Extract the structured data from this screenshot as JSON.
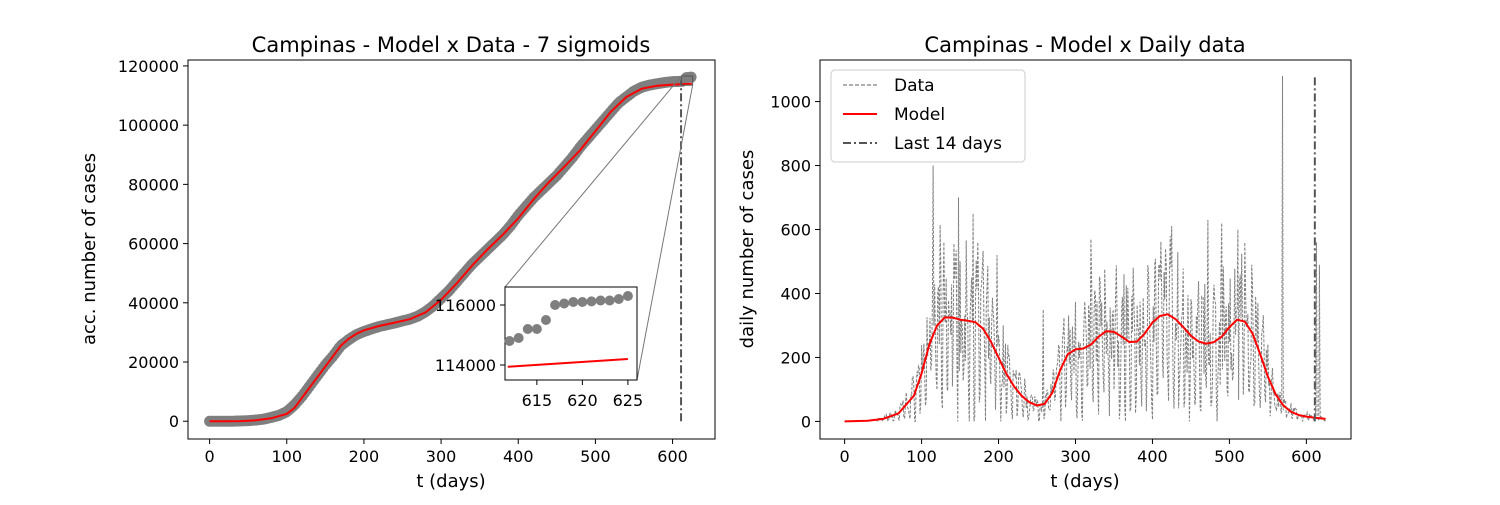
{
  "colors": {
    "data": "#7f7f7f",
    "model": "#ff0000",
    "last14": "#555555",
    "frame": "#000000"
  },
  "chart_data": [
    {
      "type": "scatter",
      "title": "Campinas - Model x Data - 7 sigmoids",
      "xlabel": "t (days)",
      "ylabel": "acc. number of cases",
      "xlim": [
        -28,
        655
      ],
      "ylim": [
        -6000,
        122000
      ],
      "xticks": [
        0,
        100,
        200,
        300,
        400,
        500,
        600
      ],
      "yticks": [
        0,
        20000,
        40000,
        60000,
        80000,
        100000,
        120000
      ],
      "last_14_days_x": 611,
      "data_points": [
        [
          0,
          0
        ],
        [
          10,
          0
        ],
        [
          20,
          0
        ],
        [
          30,
          0
        ],
        [
          40,
          100
        ],
        [
          50,
          200
        ],
        [
          60,
          400
        ],
        [
          70,
          700
        ],
        [
          80,
          1300
        ],
        [
          90,
          2000
        ],
        [
          100,
          3200
        ],
        [
          110,
          5500
        ],
        [
          120,
          8500
        ],
        [
          130,
          12000
        ],
        [
          140,
          15500
        ],
        [
          150,
          19000
        ],
        [
          160,
          22000
        ],
        [
          170,
          25500
        ],
        [
          180,
          27500
        ],
        [
          190,
          29200
        ],
        [
          200,
          30300
        ],
        [
          210,
          31200
        ],
        [
          220,
          32000
        ],
        [
          230,
          32600
        ],
        [
          240,
          33200
        ],
        [
          250,
          33900
        ],
        [
          260,
          34500
        ],
        [
          270,
          35500
        ],
        [
          280,
          37000
        ],
        [
          290,
          39000
        ],
        [
          300,
          41500
        ],
        [
          310,
          44000
        ],
        [
          320,
          47000
        ],
        [
          330,
          50000
        ],
        [
          340,
          53000
        ],
        [
          350,
          55500
        ],
        [
          360,
          58000
        ],
        [
          370,
          60500
        ],
        [
          380,
          63000
        ],
        [
          390,
          66000
        ],
        [
          400,
          69500
        ],
        [
          410,
          72500
        ],
        [
          420,
          75500
        ],
        [
          430,
          78000
        ],
        [
          440,
          80500
        ],
        [
          450,
          83000
        ],
        [
          460,
          86000
        ],
        [
          470,
          89000
        ],
        [
          480,
          92500
        ],
        [
          490,
          95500
        ],
        [
          500,
          98500
        ],
        [
          510,
          101500
        ],
        [
          520,
          104500
        ],
        [
          530,
          107500
        ],
        [
          540,
          109500
        ],
        [
          550,
          111500
        ],
        [
          560,
          112800
        ],
        [
          570,
          113500
        ],
        [
          580,
          114000
        ],
        [
          590,
          114400
        ],
        [
          600,
          114700
        ],
        [
          612,
          114800
        ],
        [
          613,
          114900
        ],
        [
          614,
          115200
        ],
        [
          615,
          115200
        ],
        [
          616,
          115500
        ],
        [
          617,
          116000
        ],
        [
          618,
          116050
        ],
        [
          619,
          116100
        ],
        [
          620,
          116100
        ],
        [
          621,
          116120
        ],
        [
          622,
          116150
        ],
        [
          623,
          116150
        ],
        [
          624,
          116200
        ],
        [
          625,
          116300
        ]
      ],
      "model": [
        [
          0,
          0
        ],
        [
          20,
          0
        ],
        [
          40,
          50
        ],
        [
          60,
          300
        ],
        [
          80,
          1000
        ],
        [
          100,
          2500
        ],
        [
          110,
          4500
        ],
        [
          120,
          8000
        ],
        [
          130,
          11500
        ],
        [
          140,
          15000
        ],
        [
          150,
          18500
        ],
        [
          160,
          22000
        ],
        [
          170,
          25500
        ],
        [
          180,
          27800
        ],
        [
          190,
          29500
        ],
        [
          200,
          30700
        ],
        [
          220,
          32200
        ],
        [
          240,
          33300
        ],
        [
          260,
          34500
        ],
        [
          280,
          36800
        ],
        [
          300,
          41000
        ],
        [
          320,
          46500
        ],
        [
          340,
          52500
        ],
        [
          360,
          58000
        ],
        [
          380,
          63000
        ],
        [
          400,
          68500
        ],
        [
          420,
          75000
        ],
        [
          440,
          80800
        ],
        [
          460,
          86000
        ],
        [
          480,
          91500
        ],
        [
          500,
          98000
        ],
        [
          520,
          104500
        ],
        [
          540,
          109500
        ],
        [
          560,
          112300
        ],
        [
          580,
          113300
        ],
        [
          600,
          113700
        ],
        [
          625,
          114000
        ]
      ],
      "inset": {
        "xlim": [
          611.5,
          626
        ],
        "ylim": [
          113500,
          116600
        ],
        "xticks": [
          615,
          620,
          625
        ],
        "yticks": [
          114000,
          116000
        ],
        "zoom_box": {
          "x": [
            611.5,
            626
          ],
          "y": [
            113500,
            116600
          ]
        }
      }
    },
    {
      "type": "line",
      "title": "Campinas - Model x Daily data",
      "xlabel": "t (days)",
      "ylabel": "daily number of cases",
      "xlim": [
        -32,
        658
      ],
      "ylim": [
        -55,
        1130
      ],
      "xticks": [
        0,
        100,
        200,
        300,
        400,
        500,
        600
      ],
      "yticks": [
        0,
        200,
        400,
        600,
        800,
        1000
      ],
      "legend": {
        "placement": "upper-left",
        "entries": [
          "Data",
          "Model",
          "Last 14 days"
        ]
      },
      "last_14_days_x": 611,
      "vline_range": [
        0,
        1080
      ],
      "spikes": [
        [
          115,
          800
        ],
        [
          148,
          700
        ],
        [
          167,
          650
        ],
        [
          198,
          520
        ],
        [
          258,
          350
        ],
        [
          320,
          570
        ],
        [
          472,
          630
        ],
        [
          490,
          620
        ],
        [
          511,
          600
        ],
        [
          569,
          1080
        ],
        [
          613,
          560
        ],
        [
          617,
          490
        ]
      ],
      "model": [
        [
          0,
          0
        ],
        [
          30,
          2
        ],
        [
          50,
          8
        ],
        [
          70,
          25
        ],
        [
          90,
          80
        ],
        [
          100,
          150
        ],
        [
          110,
          240
        ],
        [
          120,
          300
        ],
        [
          130,
          325
        ],
        [
          140,
          325
        ],
        [
          150,
          318
        ],
        [
          160,
          315
        ],
        [
          170,
          310
        ],
        [
          180,
          290
        ],
        [
          190,
          250
        ],
        [
          200,
          200
        ],
        [
          210,
          150
        ],
        [
          220,
          110
        ],
        [
          230,
          80
        ],
        [
          240,
          60
        ],
        [
          250,
          50
        ],
        [
          260,
          55
        ],
        [
          270,
          90
        ],
        [
          280,
          160
        ],
        [
          290,
          210
        ],
        [
          300,
          225
        ],
        [
          310,
          228
        ],
        [
          320,
          240
        ],
        [
          330,
          265
        ],
        [
          340,
          282
        ],
        [
          350,
          280
        ],
        [
          360,
          265
        ],
        [
          370,
          248
        ],
        [
          380,
          250
        ],
        [
          390,
          275
        ],
        [
          400,
          310
        ],
        [
          410,
          330
        ],
        [
          420,
          335
        ],
        [
          430,
          320
        ],
        [
          440,
          295
        ],
        [
          450,
          268
        ],
        [
          460,
          250
        ],
        [
          470,
          243
        ],
        [
          480,
          248
        ],
        [
          490,
          265
        ],
        [
          500,
          295
        ],
        [
          510,
          318
        ],
        [
          520,
          312
        ],
        [
          530,
          275
        ],
        [
          540,
          210
        ],
        [
          550,
          140
        ],
        [
          560,
          85
        ],
        [
          570,
          50
        ],
        [
          580,
          30
        ],
        [
          590,
          20
        ],
        [
          600,
          15
        ],
        [
          610,
          12
        ],
        [
          625,
          8
        ]
      ]
    }
  ]
}
